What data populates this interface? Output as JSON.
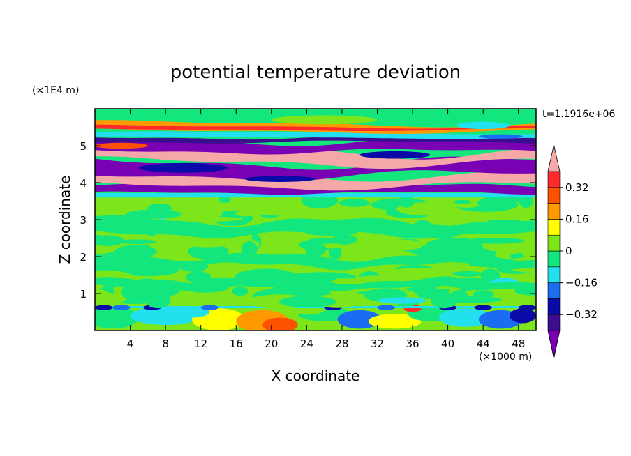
{
  "chart_data": {
    "type": "heatmap",
    "title": "potential temperature deviation",
    "xlabel": "X coordinate",
    "ylabel": "Z coordinate",
    "x_unit": "(×1000 m)",
    "y_unit": "(×1E4 m)",
    "time_label": "t=1.1916e+06",
    "xlim": [
      0,
      50
    ],
    "ylim": [
      0,
      6
    ],
    "x_ticks": [
      4,
      8,
      12,
      16,
      20,
      24,
      28,
      32,
      36,
      40,
      44,
      48
    ],
    "y_ticks": [
      1,
      2,
      3,
      4,
      5
    ],
    "colorbar": {
      "levels": [
        -0.4,
        -0.32,
        -0.24,
        -0.16,
        -0.08,
        0,
        0.08,
        0.16,
        0.24,
        0.32,
        0.4
      ],
      "labels": [
        "0.32",
        "0.16",
        "0",
        "−0.16",
        "−0.32"
      ],
      "label_values": [
        0.32,
        0.16,
        0,
        -0.16,
        -0.32
      ],
      "colors": [
        "#7a00b3",
        "#3b0d8f",
        "#0a0aa8",
        "#1a6cf0",
        "#22e0ee",
        "#14e67e",
        "#7de61a",
        "#ffff00",
        "#ff9900",
        "#ff5200",
        "#ff2a2a",
        "#f6a8a8"
      ],
      "extend": "both"
    },
    "layers": [
      {
        "z": [
          0.0,
          0.55
        ],
        "class": "mixed_low"
      },
      {
        "z": [
          0.55,
          0.7
        ],
        "class": "surface_band"
      },
      {
        "z": [
          0.7,
          3.6
        ],
        "class": "near_zero_noise"
      },
      {
        "z": [
          3.6,
          3.7
        ],
        "class": "cyan_band"
      },
      {
        "z": [
          3.7,
          5.35
        ],
        "class": "alternating_bands"
      },
      {
        "z": [
          5.35,
          6.0
        ],
        "class": "upper_mixed"
      }
    ]
  }
}
